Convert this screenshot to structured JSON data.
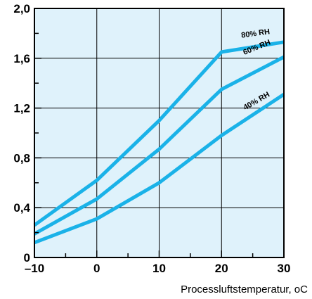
{
  "chart_data": {
    "type": "line",
    "xlabel": "Processluftstemperatur, oC",
    "ylabel": "",
    "xlim": [
      -10,
      30
    ],
    "ylim": [
      0,
      2.0
    ],
    "grid": true,
    "x_ticks": [
      -10,
      0,
      10,
      20,
      30
    ],
    "x_tick_labels": [
      "–10",
      "0",
      "10",
      "20",
      "30"
    ],
    "y_ticks": [
      0,
      0.4,
      0.8,
      1.2,
      1.6,
      2.0
    ],
    "y_tick_labels": [
      "0",
      "0,4",
      "0,8",
      "1,2",
      "1,6",
      "2,0"
    ],
    "colors": {
      "plot_background": "#dff2fb",
      "series_line": "#1ab2e8",
      "frame": "#000000",
      "grid": "#000000"
    },
    "series": [
      {
        "name": "80% RH",
        "x": [
          -10,
          0,
          10,
          20,
          30
        ],
        "y": [
          0.26,
          0.62,
          1.1,
          1.65,
          1.73
        ]
      },
      {
        "name": "60% RH",
        "x": [
          -10,
          0,
          10,
          20,
          30
        ],
        "y": [
          0.19,
          0.47,
          0.87,
          1.35,
          1.61
        ]
      },
      {
        "name": "40% RH",
        "x": [
          -10,
          0,
          10,
          20,
          30
        ],
        "y": [
          0.12,
          0.31,
          0.6,
          0.98,
          1.31
        ]
      }
    ]
  }
}
